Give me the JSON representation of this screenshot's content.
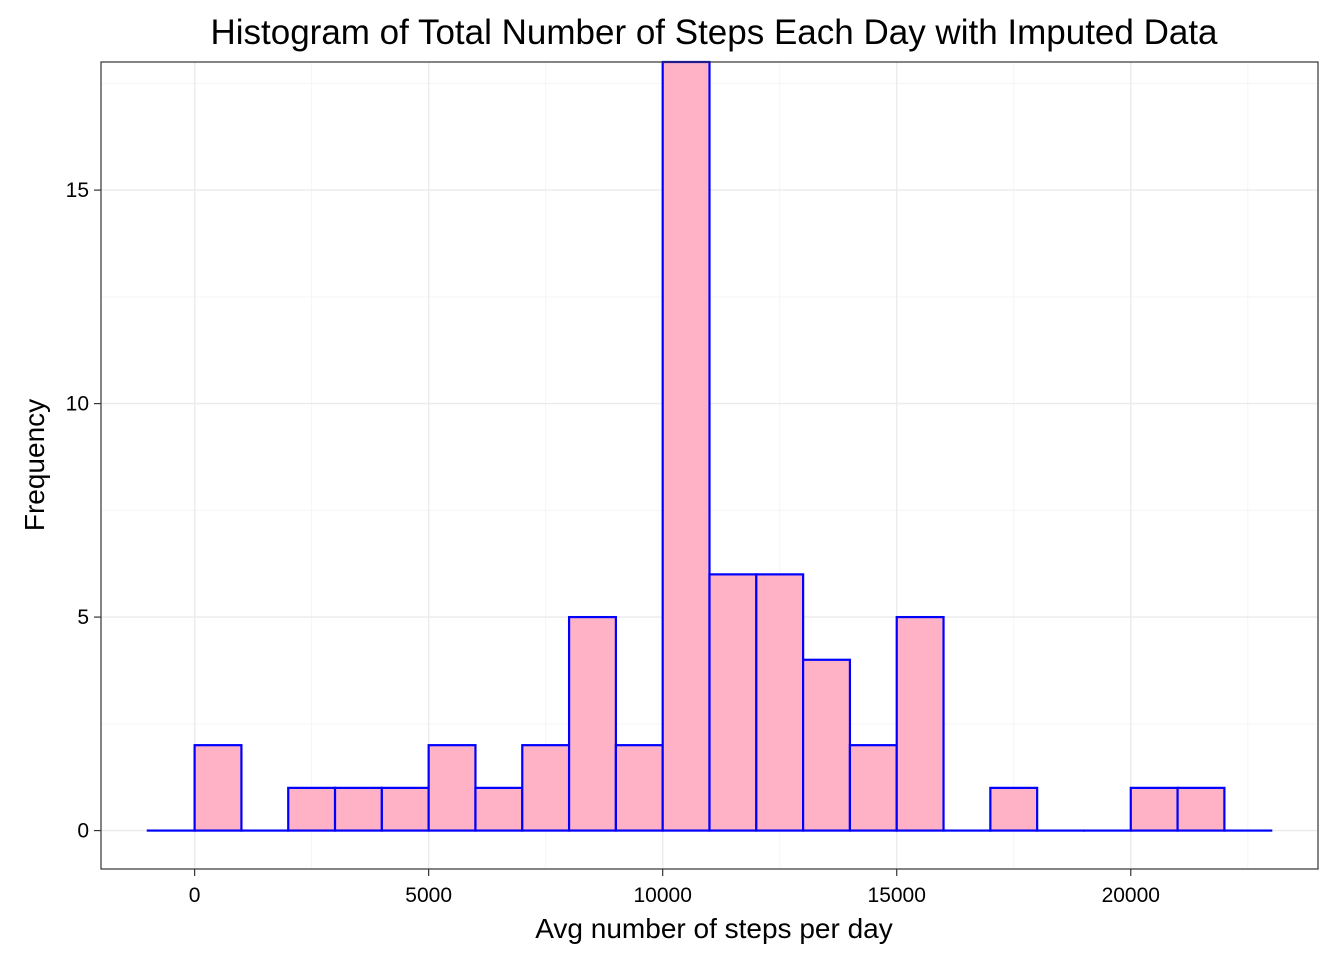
{
  "chart_data": {
    "type": "bar",
    "title": "Histogram of Total Number of Steps Each Day with Imputed Data",
    "xlabel": "Avg number of steps per day",
    "ylabel": "Frequency",
    "binwidth": 1000,
    "bins": [
      {
        "start": -1000,
        "end": 0,
        "count": 0
      },
      {
        "start": 0,
        "end": 1000,
        "count": 2
      },
      {
        "start": 1000,
        "end": 2000,
        "count": 0
      },
      {
        "start": 2000,
        "end": 3000,
        "count": 1
      },
      {
        "start": 3000,
        "end": 4000,
        "count": 1
      },
      {
        "start": 4000,
        "end": 5000,
        "count": 1
      },
      {
        "start": 5000,
        "end": 6000,
        "count": 2
      },
      {
        "start": 6000,
        "end": 7000,
        "count": 1
      },
      {
        "start": 7000,
        "end": 8000,
        "count": 2
      },
      {
        "start": 8000,
        "end": 9000,
        "count": 5
      },
      {
        "start": 9000,
        "end": 10000,
        "count": 2
      },
      {
        "start": 10000,
        "end": 11000,
        "count": 18
      },
      {
        "start": 11000,
        "end": 12000,
        "count": 6
      },
      {
        "start": 12000,
        "end": 13000,
        "count": 6
      },
      {
        "start": 13000,
        "end": 14000,
        "count": 4
      },
      {
        "start": 14000,
        "end": 15000,
        "count": 2
      },
      {
        "start": 15000,
        "end": 16000,
        "count": 5
      },
      {
        "start": 16000,
        "end": 17000,
        "count": 0
      },
      {
        "start": 17000,
        "end": 18000,
        "count": 1
      },
      {
        "start": 18000,
        "end": 19000,
        "count": 0
      },
      {
        "start": 19000,
        "end": 20000,
        "count": 0
      },
      {
        "start": 20000,
        "end": 21000,
        "count": 1
      },
      {
        "start": 21000,
        "end": 22000,
        "count": 1
      },
      {
        "start": 22000,
        "end": 23000,
        "count": 0
      }
    ],
    "xlim": [
      -2000,
      24000
    ],
    "ylim": [
      -0.9,
      18.0
    ],
    "x_ticks": [
      0,
      5000,
      10000,
      15000,
      20000
    ],
    "x_tick_labels": [
      "0",
      "5000",
      "10000",
      "15000",
      "20000"
    ],
    "y_ticks": [
      0,
      5,
      10,
      15
    ],
    "y_tick_labels": [
      "0",
      "5",
      "10",
      "15"
    ],
    "grid": true,
    "legend": "none",
    "colors": {
      "bar_fill": "#ffb2c6",
      "bar_outline": "#0000ff",
      "panel_background": "#ffffff",
      "gridline": "#ebebeb",
      "panel_border": "#333333"
    }
  }
}
